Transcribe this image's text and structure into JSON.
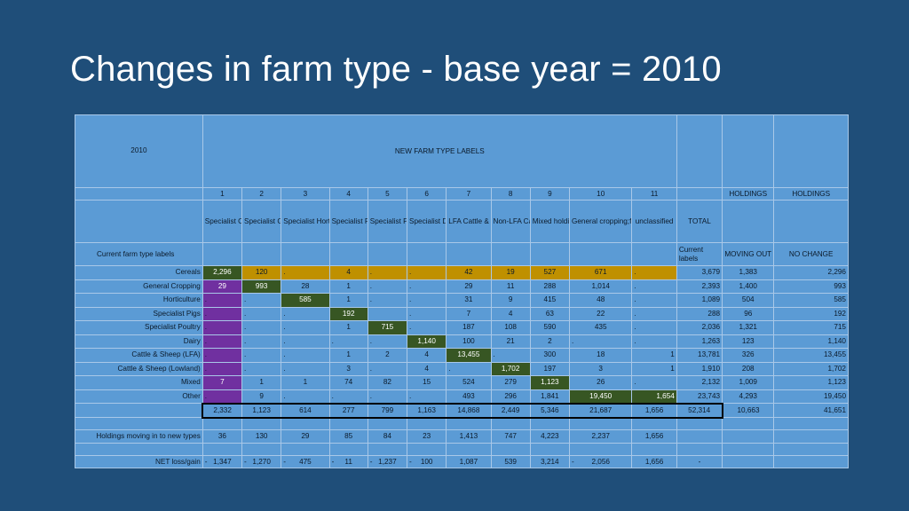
{
  "slide": {
    "title": "Changes in farm type - base year = 2010"
  },
  "table": {
    "year_label": "2010",
    "group_header": "NEW FARM TYPE LABELS",
    "col_numbers": [
      "1",
      "2",
      "3",
      "4",
      "5",
      "6",
      "7",
      "8",
      "9",
      "10",
      "11",
      "",
      "HOLDINGS",
      "HOLDINGS"
    ],
    "col_names": [
      "Specialist Cereals",
      "Specialist General cropping",
      "Specialist Horticulture & Permanent Crops",
      "Specialist Pigs",
      "Specialist Poultry",
      "Specialist Dairy",
      "LFA Cattle & Sheep",
      "Non-LFA Cattle & Sheep",
      "Mixed holdings",
      "General cropping;forage",
      "unclassified",
      "TOTAL",
      "",
      ""
    ],
    "current_labels_header": "Current farm type labels",
    "current_labels_short": "Current labels",
    "moving_out": "MOVING OUT",
    "no_change": "NO CHANGE",
    "rows": [
      {
        "label": "Cereals",
        "cells": [
          "2,296",
          "120",
          ".",
          "4",
          ".",
          ".",
          "42",
          "19",
          "527",
          "671",
          ".",
          "3,679",
          "1,383",
          "2,296"
        ]
      },
      {
        "label": "General Cropping",
        "cells": [
          "29",
          "993",
          "28",
          "1",
          ".",
          ".",
          "29",
          "11",
          "288",
          "1,014",
          ".",
          "2,393",
          "1,400",
          "993"
        ]
      },
      {
        "label": "Horticulture",
        "cells": [
          ".",
          ".",
          "585",
          "1",
          ".",
          ".",
          "31",
          "9",
          "415",
          "48",
          ".",
          "1,089",
          "504",
          "585"
        ]
      },
      {
        "label": "Specialist Pigs",
        "cells": [
          ".",
          ".",
          ".",
          "192",
          "",
          ".",
          "7",
          "4",
          "63",
          "22",
          ".",
          "288",
          "96",
          "192"
        ]
      },
      {
        "label": "Specialist Poultry",
        "cells": [
          ".",
          ".",
          ".",
          "1",
          "715",
          ".",
          "187",
          "108",
          "590",
          "435",
          ".",
          "2,036",
          "1,321",
          "715"
        ]
      },
      {
        "label": "Dairy",
        "cells": [
          ".",
          ".",
          ".",
          ".",
          ".",
          "1,140",
          "100",
          "21",
          "2",
          ".",
          ".",
          "1,263",
          "123",
          "1,140"
        ]
      },
      {
        "label": "Cattle & Sheep (LFA)",
        "cells": [
          ".",
          ".",
          ".",
          "1",
          "2",
          "4",
          "13,455",
          ".",
          "300",
          "18",
          "1",
          "13,781",
          "326",
          "13,455"
        ]
      },
      {
        "label": "Cattle & Sheep (Lowland)",
        "cells": [
          ".",
          ".",
          ".",
          "3",
          ".",
          "4",
          ".",
          "1,702",
          "197",
          "3",
          "1",
          "1,910",
          "208",
          "1,702"
        ]
      },
      {
        "label": "Mixed",
        "cells": [
          "7",
          "1",
          "1",
          "74",
          "82",
          "15",
          "524",
          "279",
          "1,123",
          "26",
          ".",
          "2,132",
          "1,009",
          "1,123"
        ]
      },
      {
        "label": "Other",
        "cells": [
          ".",
          "9",
          ".",
          ".",
          ".",
          ".",
          "493",
          "296",
          "1,841",
          "19,450",
          "1,654",
          "23,743",
          "4,293",
          "19,450"
        ]
      }
    ],
    "totals": [
      "2,332",
      "1,123",
      "614",
      "277",
      "799",
      "1,163",
      "14,868",
      "2,449",
      "5,346",
      "21,687",
      "1,656",
      "52,314",
      "10,663",
      "41,651"
    ],
    "moving_in_label": "Holdings moving in to new types",
    "moving_in": [
      "36",
      "130",
      "29",
      "85",
      "84",
      "23",
      "1,413",
      "747",
      "4,223",
      "2,237",
      "1,656"
    ],
    "net_label": "NET loss/gain",
    "net": [
      {
        "sign": "-",
        "value": "1,347"
      },
      {
        "sign": "-",
        "value": "1,270"
      },
      {
        "sign": "-",
        "value": "475"
      },
      {
        "sign": "-",
        "value": "11"
      },
      {
        "sign": "-",
        "value": "1,237"
      },
      {
        "sign": "-",
        "value": "100"
      },
      {
        "sign": "",
        "value": "1,087"
      },
      {
        "sign": "",
        "value": "539"
      },
      {
        "sign": "",
        "value": "3,214"
      },
      {
        "sign": "-",
        "value": "2,056"
      },
      {
        "sign": "",
        "value": "1,656"
      },
      {
        "sign": "",
        "value": "-"
      }
    ],
    "colors": {
      "slide_bg": "#1f4e79",
      "table_bg": "#5b9bd5",
      "cereals_row": "#bf9000",
      "diagonal": "#375623",
      "cereals_col": "#7030a0"
    }
  }
}
